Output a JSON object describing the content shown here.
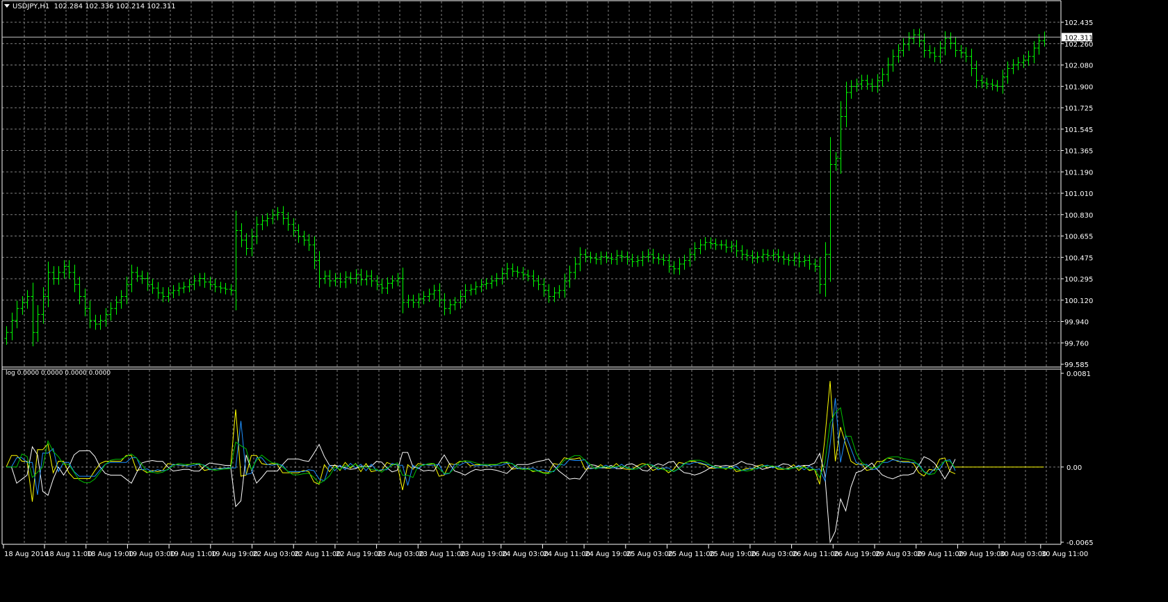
{
  "header": {
    "symbol": "USDJPY,H1",
    "ohlc": "102.284 102.336 102.214 102.311"
  },
  "indicator": {
    "label": "log 0.0000 0.0000 0.0000 0.0000",
    "axis_labels": [
      "0.0081",
      "0.00",
      "-0.0065"
    ],
    "axis_values": [
      0.0081,
      0,
      -0.0065
    ],
    "series_colors": [
      "#ffff00",
      "#ffffff",
      "#1e90ff",
      "#00c000"
    ]
  },
  "colors": {
    "background": "#000000",
    "bars": "#00ff00",
    "grid": "#808080",
    "bid_line": "#c0c0c0",
    "axis_text": "#ffffff"
  },
  "chart_data": {
    "type": "bar",
    "ohlc_style": "hlc bars",
    "current_price": "102.311",
    "price_axis_labels": [
      "102.435",
      "102.260",
      "102.080",
      "101.900",
      "101.725",
      "101.545",
      "101.365",
      "101.190",
      "101.010",
      "100.830",
      "100.655",
      "100.475",
      "100.295",
      "100.120",
      "99.940",
      "99.760",
      "99.585"
    ],
    "ylim": [
      99.585,
      102.435
    ],
    "time_axis_labels": [
      "18 Aug 2016",
      "18 Aug 11:00",
      "18 Aug 19:00",
      "19 Aug 03:00",
      "19 Aug 11:00",
      "19 Aug 19:00",
      "22 Aug 03:00",
      "22 Aug 11:00",
      "22 Aug 19:00",
      "23 Aug 03:00",
      "23 Aug 11:00",
      "23 Aug 19:00",
      "24 Aug 03:00",
      "24 Aug 11:00",
      "24 Aug 19:00",
      "25 Aug 03:00",
      "25 Aug 11:00",
      "25 Aug 19:00",
      "26 Aug 03:00",
      "26 Aug 11:00",
      "26 Aug 19:00",
      "29 Aug 03:00",
      "29 Aug 11:00",
      "29 Aug 19:00",
      "30 Aug 03:00",
      "30 Aug 11:00"
    ],
    "grid": true,
    "closes": [
      99.85,
      99.95,
      100.05,
      100.1,
      100.15,
      99.85,
      100.0,
      100.15,
      100.35,
      100.3,
      100.35,
      100.4,
      100.35,
      100.25,
      100.15,
      100.05,
      99.95,
      99.92,
      99.95,
      100.0,
      100.05,
      100.1,
      100.15,
      100.25,
      100.35,
      100.32,
      100.3,
      100.25,
      100.22,
      100.18,
      100.15,
      100.18,
      100.2,
      100.22,
      100.23,
      100.25,
      100.28,
      100.3,
      100.27,
      100.25,
      100.23,
      100.22,
      100.21,
      100.2,
      100.7,
      100.62,
      100.55,
      100.65,
      100.75,
      100.78,
      100.8,
      100.83,
      100.85,
      100.8,
      100.75,
      100.7,
      100.65,
      100.62,
      100.58,
      100.45,
      100.3,
      100.32,
      100.28,
      100.3,
      100.27,
      100.31,
      100.3,
      100.33,
      100.29,
      100.32,
      100.28,
      100.25,
      100.22,
      100.26,
      100.28,
      100.3,
      100.1,
      100.12,
      100.1,
      100.13,
      100.15,
      100.17,
      100.2,
      100.12,
      100.05,
      100.08,
      100.1,
      100.15,
      100.2,
      100.21,
      100.23,
      100.25,
      100.26,
      100.28,
      100.3,
      100.34,
      100.38,
      100.36,
      100.35,
      100.33,
      100.32,
      100.28,
      100.25,
      100.2,
      100.15,
      100.18,
      100.2,
      100.28,
      100.35,
      100.42,
      100.5,
      100.48,
      100.47,
      100.46,
      100.48,
      100.47,
      100.46,
      100.49,
      100.48,
      100.46,
      100.44,
      100.45,
      100.48,
      100.5,
      100.47,
      100.46,
      100.45,
      100.4,
      100.38,
      100.42,
      100.45,
      100.5,
      100.55,
      100.58,
      100.6,
      100.59,
      100.58,
      100.58,
      100.56,
      100.57,
      100.53,
      100.5,
      100.49,
      100.47,
      100.48,
      100.5,
      100.49,
      100.5,
      100.48,
      100.46,
      100.45,
      100.47,
      100.44,
      100.45,
      100.42,
      100.4,
      100.25,
      100.5,
      101.25,
      101.3,
      101.65,
      101.85,
      101.9,
      101.92,
      101.95,
      101.92,
      101.9,
      101.95,
      102.0,
      102.08,
      102.15,
      102.2,
      102.25,
      102.3,
      102.33,
      102.28,
      102.2,
      102.18,
      102.15,
      102.22,
      102.3,
      102.26,
      102.2,
      102.18,
      102.15,
      102.05,
      101.95,
      101.93,
      101.92,
      101.91,
      101.9,
      101.98,
      102.05,
      102.08,
      102.1,
      102.12,
      102.15,
      102.22,
      102.28,
      102.31
    ]
  }
}
